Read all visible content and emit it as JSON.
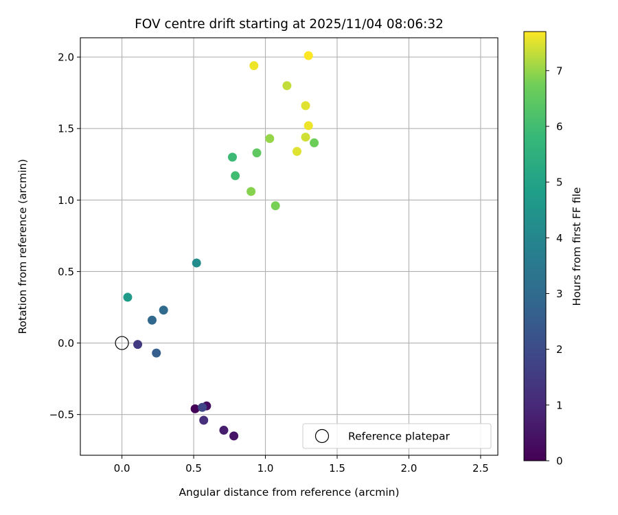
{
  "chart_data": {
    "type": "scatter",
    "title": "FOV centre drift starting at 2025/11/04 08:06:32",
    "xlabel": "Angular distance from reference (arcmin)",
    "ylabel": "Rotation from reference (arcmin)",
    "xlim": [
      -0.29,
      2.62
    ],
    "ylim": [
      -0.785,
      2.135
    ],
    "xticks": [
      0.0,
      0.5,
      1.0,
      1.5,
      2.0,
      2.5
    ],
    "xtick_labels": [
      "0.0",
      "0.5",
      "1.0",
      "1.5",
      "2.0",
      "2.5"
    ],
    "yticks": [
      -0.5,
      0.0,
      0.5,
      1.0,
      1.5,
      2.0
    ],
    "ytick_labels": [
      "−0.5",
      "0.0",
      "0.5",
      "1.0",
      "1.5",
      "2.0"
    ],
    "grid": true,
    "colorbar": {
      "label": "Hours from first FF file",
      "colormap": "viridis",
      "range": [
        0,
        7.7
      ],
      "ticks": [
        0,
        1,
        2,
        3,
        4,
        5,
        6,
        7
      ],
      "tick_labels": [
        "0",
        "1",
        "2",
        "3",
        "4",
        "5",
        "6",
        "7"
      ]
    },
    "legend": {
      "placement": "lower-right",
      "entries": [
        {
          "label": "Reference platepar",
          "marker": "open-circle",
          "x": 0.0,
          "y": 0.0
        }
      ]
    },
    "series": [
      {
        "name": "FOV centre",
        "points": [
          {
            "x": 0.51,
            "y": -0.46,
            "hours": 0.1
          },
          {
            "x": 0.59,
            "y": -0.44,
            "hours": 0.3
          },
          {
            "x": 0.78,
            "y": -0.65,
            "hours": 0.5
          },
          {
            "x": 0.71,
            "y": -0.61,
            "hours": 0.7
          },
          {
            "x": 0.57,
            "y": -0.54,
            "hours": 1.2
          },
          {
            "x": 0.11,
            "y": -0.01,
            "hours": 1.5
          },
          {
            "x": 0.56,
            "y": -0.45,
            "hours": 1.8
          },
          {
            "x": 0.24,
            "y": -0.07,
            "hours": 2.6
          },
          {
            "x": 0.21,
            "y": 0.16,
            "hours": 2.9
          },
          {
            "x": 0.29,
            "y": 0.23,
            "hours": 3.0
          },
          {
            "x": 0.52,
            "y": 0.56,
            "hours": 4.2
          },
          {
            "x": 0.04,
            "y": 0.32,
            "hours": 4.7
          },
          {
            "x": 0.77,
            "y": 1.3,
            "hours": 5.9
          },
          {
            "x": 0.79,
            "y": 1.17,
            "hours": 6.0
          },
          {
            "x": 0.94,
            "y": 1.33,
            "hours": 6.5
          },
          {
            "x": 1.34,
            "y": 1.4,
            "hours": 6.7
          },
          {
            "x": 1.07,
            "y": 0.96,
            "hours": 6.8
          },
          {
            "x": 0.9,
            "y": 1.06,
            "hours": 6.9
          },
          {
            "x": 1.03,
            "y": 1.43,
            "hours": 7.0
          },
          {
            "x": 1.15,
            "y": 1.8,
            "hours": 7.3
          },
          {
            "x": 1.28,
            "y": 1.44,
            "hours": 7.4
          },
          {
            "x": 1.28,
            "y": 1.66,
            "hours": 7.5
          },
          {
            "x": 1.22,
            "y": 1.34,
            "hours": 7.5
          },
          {
            "x": 0.92,
            "y": 1.94,
            "hours": 7.6
          },
          {
            "x": 1.3,
            "y": 1.52,
            "hours": 7.6
          },
          {
            "x": 1.3,
            "y": 2.01,
            "hours": 7.7
          }
        ]
      }
    ]
  }
}
